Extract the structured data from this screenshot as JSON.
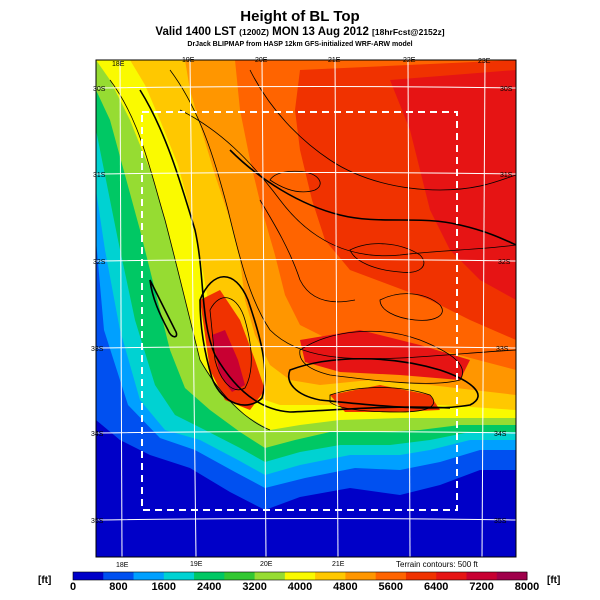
{
  "title": "Height of BL Top",
  "subtitle": {
    "main": "Valid 1400 LST",
    "utc": "(1200Z)",
    "date": "MON 13 Aug 2012",
    "forecast": "[18hrFcst@2152z]"
  },
  "credit": "DrJack BLIPMAP from HASP 12km GFS-initialized WRF-ARW model",
  "terrain_note": "Terrain contours: 500 ft",
  "colorbar": {
    "unit_left": "[ft]",
    "unit_right": "[ft]",
    "labels": [
      "0",
      "800",
      "1600",
      "2400",
      "3200",
      "4000",
      "4800",
      "5600",
      "6400",
      "7200",
      "8000"
    ],
    "colors": [
      "#0000c8",
      "#0050f0",
      "#00a0ff",
      "#00d2d2",
      "#00c864",
      "#32c832",
      "#96dc32",
      "#fafa00",
      "#ffc800",
      "#ff9600",
      "#ff6400",
      "#f03200",
      "#e61414",
      "#c80032",
      "#a0004b"
    ]
  },
  "longitude_labels_top": [
    "18E",
    "19E",
    "20E",
    "21E",
    "22E",
    "23E"
  ],
  "longitude_labels_bottom": [
    "18E",
    "19E",
    "20E",
    "21E"
  ],
  "latitude_labels_left": [
    "30S",
    "31S",
    "32S",
    "33S",
    "34S",
    "35S"
  ],
  "latitude_labels_right": [
    "30S",
    "31S",
    "32S",
    "33S",
    "34S",
    "35S"
  ]
}
